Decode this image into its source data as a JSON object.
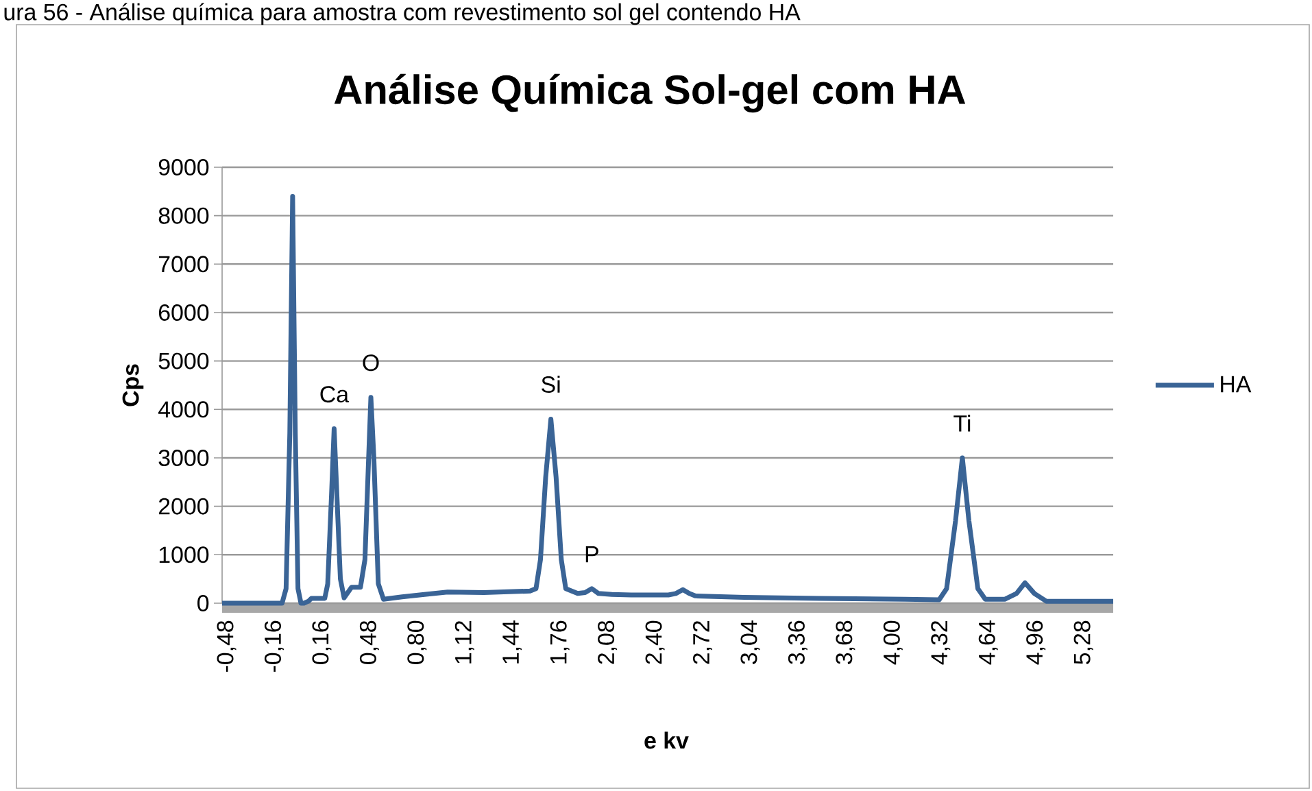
{
  "chart_data": {
    "type": "line",
    "title": "Análise Química Sol-gel com HA",
    "xlabel": "e kv",
    "ylabel": "Cps",
    "annotations": [
      "ura 56 - Análise química para amostra com revestimento sol gel contendo HA",
      {
        "text": "Ca",
        "x": 0.243,
        "y": 3600
      },
      {
        "text": "O",
        "x": 0.49,
        "y": 4250
      },
      {
        "text": "Si",
        "x": 1.7,
        "y": 3800
      },
      {
        "text": "P",
        "x": 1.975,
        "y": 300
      },
      {
        "text": "Ti",
        "x": 4.466,
        "y": 3000
      }
    ],
    "series": [
      {
        "name": "HA",
        "color": "#3a6496",
        "x": [
          -0.51,
          -0.3,
          -0.107,
          -0.08,
          -0.055,
          -0.036,
          -0.018,
          0.0,
          0.02,
          0.04,
          0.07,
          0.09,
          0.18,
          0.2,
          0.225,
          0.243,
          0.262,
          0.285,
          0.31,
          0.36,
          0.42,
          0.45,
          0.475,
          0.49,
          0.51,
          0.54,
          0.575,
          0.7,
          0.85,
          1.006,
          1.25,
          1.45,
          1.56,
          1.6,
          1.63,
          1.665,
          1.7,
          1.735,
          1.77,
          1.8,
          1.88,
          1.93,
          1.975,
          2.02,
          2.11,
          2.24,
          2.49,
          2.54,
          2.587,
          2.63,
          2.67,
          3.0,
          3.5,
          4.08,
          4.31,
          4.36,
          4.42,
          4.466,
          4.51,
          4.57,
          4.62,
          4.75,
          4.83,
          4.887,
          4.95,
          5.03,
          5.25,
          5.48
        ],
        "values": [
          0,
          0,
          0,
          300,
          3500,
          8400,
          3500,
          300,
          0,
          0,
          40,
          100,
          100,
          400,
          2200,
          3600,
          2200,
          500,
          110,
          330,
          330,
          900,
          3000,
          4250,
          3000,
          400,
          80,
          130,
          180,
          230,
          220,
          240,
          250,
          300,
          900,
          2600,
          3800,
          2600,
          900,
          300,
          200,
          220,
          300,
          200,
          180,
          170,
          170,
          200,
          280,
          200,
          150,
          120,
          100,
          80,
          70,
          300,
          1700,
          3000,
          1700,
          300,
          80,
          80,
          200,
          420,
          200,
          40,
          40,
          40
        ]
      }
    ],
    "xlim": [
      -0.51,
      5.48
    ],
    "xticks": [
      {
        "value": -0.48,
        "label": "-0,48"
      },
      {
        "value": -0.16,
        "label": "-0,16"
      },
      {
        "value": 0.16,
        "label": "0,16"
      },
      {
        "value": 0.48,
        "label": "0,48"
      },
      {
        "value": 0.8,
        "label": "0,80"
      },
      {
        "value": 1.12,
        "label": "1,12"
      },
      {
        "value": 1.44,
        "label": "1,44"
      },
      {
        "value": 1.76,
        "label": "1,76"
      },
      {
        "value": 2.08,
        "label": "2,08"
      },
      {
        "value": 2.4,
        "label": "2,40"
      },
      {
        "value": 2.72,
        "label": "2,72"
      },
      {
        "value": 3.04,
        "label": "3,04"
      },
      {
        "value": 3.36,
        "label": "3,36"
      },
      {
        "value": 3.68,
        "label": "3,68"
      },
      {
        "value": 4.0,
        "label": "4,00"
      },
      {
        "value": 4.32,
        "label": "4,32"
      },
      {
        "value": 4.64,
        "label": "4,64"
      },
      {
        "value": 4.96,
        "label": "4,96"
      },
      {
        "value": 5.28,
        "label": "5,28"
      }
    ],
    "ylim": [
      0,
      9000
    ],
    "yticks": [
      0,
      1000,
      2000,
      3000,
      4000,
      5000,
      6000,
      7000,
      8000,
      9000
    ],
    "grid": "y",
    "legend": "right",
    "marker": "none",
    "line_style": "solid"
  }
}
